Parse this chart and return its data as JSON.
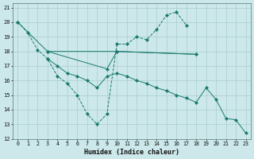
{
  "bg_color": "#cce8ea",
  "grid_color": "#aacccc",
  "line_color": "#1a7a6e",
  "xlabel": "Humidex (Indice chaleur)",
  "xmin": 0,
  "xmax": 23,
  "ymin": 12,
  "ymax": 21,
  "yticks": [
    12,
    13,
    14,
    15,
    16,
    17,
    18,
    19,
    20,
    21
  ],
  "xticks": [
    0,
    1,
    2,
    3,
    4,
    5,
    6,
    7,
    8,
    9,
    10,
    11,
    12,
    13,
    14,
    15,
    16,
    17,
    18,
    19,
    20,
    21,
    22,
    23
  ],
  "line1_x": [
    0,
    1,
    2,
    3,
    4,
    5,
    6,
    7,
    8,
    9,
    10,
    11,
    12,
    13,
    14,
    15,
    16,
    17
  ],
  "line1_y": [
    20.0,
    19.3,
    18.1,
    17.5,
    16.3,
    15.8,
    15.0,
    13.7,
    13.0,
    13.7,
    18.5,
    18.5,
    19.0,
    18.8,
    19.5,
    20.5,
    20.7,
    19.8
  ],
  "line2_x": [
    0,
    3,
    10,
    18
  ],
  "line2_y": [
    20.0,
    18.0,
    18.0,
    17.8
  ],
  "line3_x": [
    3,
    9,
    10,
    18
  ],
  "line3_y": [
    18.0,
    16.8,
    18.0,
    17.8
  ],
  "line4_x": [
    3,
    4,
    5,
    6,
    7,
    8,
    9,
    10,
    11,
    12,
    13,
    14,
    15,
    16,
    17,
    18,
    19,
    20,
    21,
    22,
    23
  ],
  "line4_y": [
    17.5,
    17.0,
    16.5,
    16.3,
    16.0,
    15.5,
    16.3,
    16.5,
    16.3,
    16.0,
    15.8,
    15.5,
    15.3,
    15.0,
    14.8,
    14.5,
    15.5,
    14.7,
    13.4,
    13.3,
    12.4
  ]
}
